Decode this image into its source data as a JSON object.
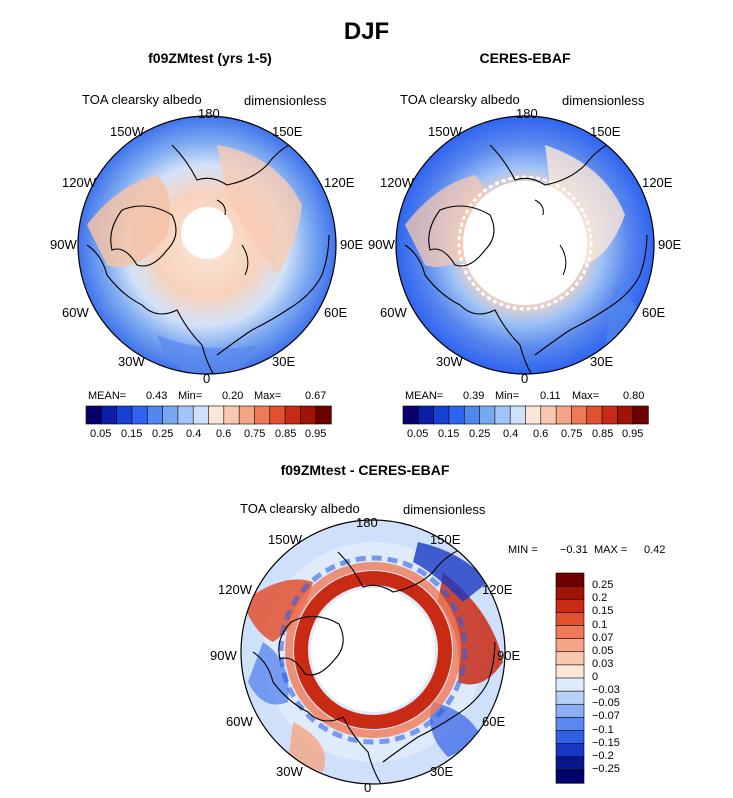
{
  "title": "DJF",
  "panels": [
    {
      "id": "model",
      "title": "f09ZMtest (yrs 1-5)",
      "variable": "TOA clearsky albedo",
      "units": "dimensionless",
      "lon_labels": [
        "180",
        "150E",
        "120E",
        "90E",
        "60E",
        "30E",
        "0",
        "30W",
        "60W",
        "90W",
        "120W",
        "150W"
      ],
      "stats": {
        "mean_label": "MEAN=",
        "mean": "0.43",
        "min_label": "Min=",
        "min": "0.20",
        "max_label": "Max=",
        "max": "0.67"
      },
      "colorbar_ticks": [
        "0.05",
        "0.15",
        "0.25",
        "0.4",
        "0.6",
        "0.75",
        "0.85",
        "0.95"
      ]
    },
    {
      "id": "obs",
      "title": "CERES-EBAF",
      "variable": "TOA clearsky albedo",
      "units": "dimensionless",
      "lon_labels": [
        "180",
        "150E",
        "120E",
        "90E",
        "60E",
        "30E",
        "0",
        "30W",
        "60W",
        "90W",
        "120W",
        "150W"
      ],
      "stats": {
        "mean_label": "MEAN=",
        "mean": "0.39",
        "min_label": "Min=",
        "min": "0.11",
        "max_label": "Max=",
        "max": "0.80"
      },
      "colorbar_ticks": [
        "0.05",
        "0.15",
        "0.25",
        "0.4",
        "0.6",
        "0.75",
        "0.85",
        "0.95"
      ]
    },
    {
      "id": "diff",
      "title": "f09ZMtest - CERES-EBAF",
      "variable": "TOA clearsky albedo",
      "units": "dimensionless",
      "lon_labels": [
        "180",
        "150E",
        "120E",
        "90E",
        "60E",
        "30E",
        "0",
        "30W",
        "60W",
        "90W",
        "120W",
        "150W"
      ],
      "stats": {
        "min_label": "MIN =",
        "min": "−0.31",
        "max_label": "MAX =",
        "max": "0.42"
      },
      "colorbar_ticks": [
        "0.25",
        "0.2",
        "0.15",
        "0.1",
        "0.07",
        "0.05",
        "0.03",
        "0",
        "−0.03",
        "−0.05",
        "−0.07",
        "−0.1",
        "−0.15",
        "−0.2",
        "−0.25"
      ]
    }
  ],
  "colors": {
    "abs_scale": [
      "#08006e",
      "#0a1ea8",
      "#1640d6",
      "#2f64f0",
      "#5088f0",
      "#78a8f2",
      "#a2c4f6",
      "#cfe0fa",
      "#fbe6d8",
      "#f8c8b0",
      "#f5a585",
      "#ef7a58",
      "#e35030",
      "#c82a14",
      "#a01408",
      "#6e0000"
    ],
    "diff_scale": [
      "#6e0000",
      "#a01408",
      "#c82a14",
      "#e35030",
      "#ef7a58",
      "#f5a585",
      "#f8c8b0",
      "#fbe6d8",
      "#dfeafa",
      "#b8d0f6",
      "#8cb0f2",
      "#5a88ee",
      "#3060e4",
      "#1838c4",
      "#08188c",
      "#00006e"
    ]
  }
}
